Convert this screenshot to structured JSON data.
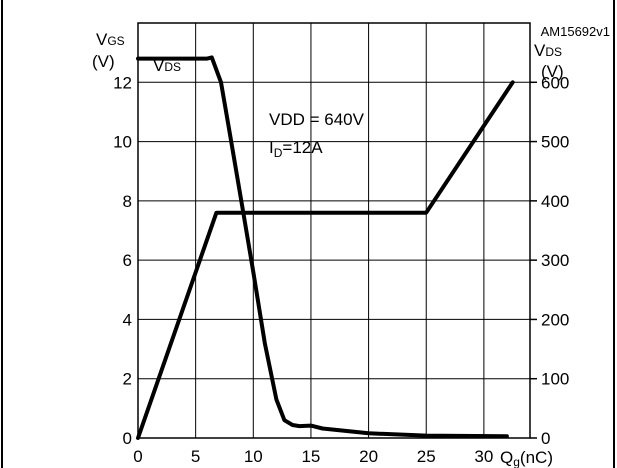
{
  "chart_data": {
    "type": "line",
    "reference": "AM15692v1",
    "x_axis": {
      "label_main": "Q",
      "label_sub": "g",
      "label_unit": "(nC)",
      "ticks": [
        "0",
        "5",
        "10",
        "15",
        "20",
        "25",
        "30"
      ],
      "range": [
        0,
        34
      ]
    },
    "y_left": {
      "label_main": "V",
      "label_sub": "GS",
      "label_unit": "(V)",
      "ticks": [
        "0",
        "2",
        "4",
        "6",
        "8",
        "10",
        "12"
      ],
      "range": [
        0,
        14
      ]
    },
    "y_right": {
      "label_main": "V",
      "label_sub": "DS",
      "label_unit": "(V)",
      "ticks": [
        "0",
        "100",
        "200",
        "300",
        "400",
        "500",
        "600"
      ],
      "range": [
        0,
        700
      ]
    },
    "annotations": {
      "vdd": "VDD = 640V",
      "id_main": "I",
      "id_sub": "D",
      "id_rest": "=12A",
      "series_label_main": "V",
      "series_label_sub": "DS"
    },
    "grid": true,
    "series": [
      {
        "name": "VGS",
        "axis": "left",
        "x": [
          0,
          6.8,
          25,
          32.5
        ],
        "y": [
          0,
          7.6,
          7.6,
          12
        ]
      },
      {
        "name": "VDS",
        "axis": "right",
        "x": [
          0,
          6,
          6.4,
          7.2,
          8,
          9,
          10,
          11,
          12,
          12.7,
          13.4,
          14,
          15,
          16,
          20,
          25,
          32
        ],
        "y": [
          640,
          640,
          642,
          600,
          510,
          395,
          280,
          160,
          65,
          30,
          22,
          20,
          21,
          16,
          8,
          4,
          3
        ]
      }
    ]
  }
}
